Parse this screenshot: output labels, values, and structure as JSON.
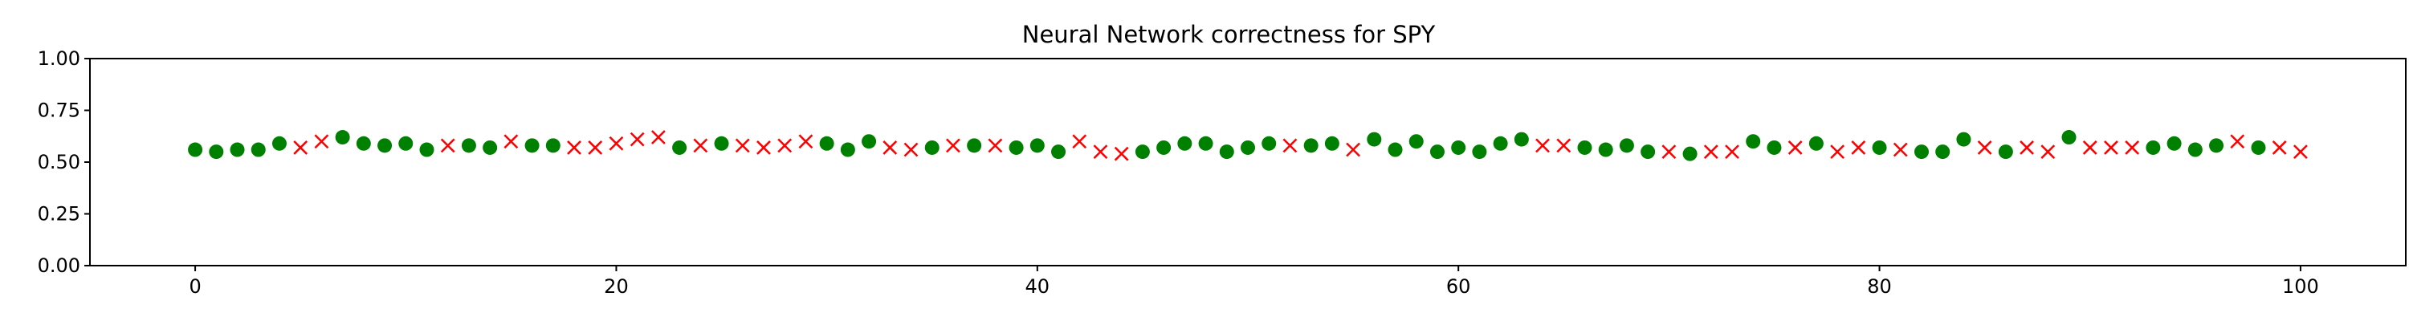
{
  "chart_data": {
    "type": "scatter",
    "title": "Neural Network correctness for SPY",
    "xlabel": "",
    "ylabel": "",
    "xlim": [
      -5,
      105
    ],
    "ylim": [
      0,
      1
    ],
    "x_ticks": [
      0,
      20,
      40,
      60,
      80,
      100
    ],
    "y_ticks": [
      0.0,
      0.25,
      0.5,
      0.75,
      1.0
    ],
    "x_tick_labels": [
      "0",
      "20",
      "40",
      "60",
      "80",
      "100"
    ],
    "y_tick_labels": [
      "0.00",
      "0.25",
      "0.50",
      "0.75",
      "1.00"
    ],
    "grid": false,
    "legend": "none",
    "colors": {
      "correct": "#008000",
      "incorrect": "#ff0000"
    },
    "markers": {
      "correct": "circle",
      "incorrect": "x"
    },
    "series": [
      {
        "x": [
          0,
          1,
          2,
          3,
          4,
          7,
          8,
          9,
          10,
          11,
          13,
          14,
          16,
          17,
          23,
          25,
          30,
          31,
          32,
          35,
          37,
          39,
          40,
          41,
          45,
          46,
          47,
          48,
          49,
          50,
          51,
          53,
          54,
          56,
          57,
          58,
          59,
          60,
          61,
          62,
          63,
          66,
          67,
          68,
          69,
          71,
          74,
          75,
          77,
          80,
          82,
          83,
          84,
          86,
          89,
          93,
          94,
          95,
          96,
          98
        ],
        "values": [
          0.56,
          0.55,
          0.56,
          0.56,
          0.59,
          0.62,
          0.59,
          0.58,
          0.59,
          0.56,
          0.58,
          0.57,
          0.58,
          0.58,
          0.57,
          0.59,
          0.59,
          0.56,
          0.6,
          0.57,
          0.58,
          0.57,
          0.58,
          0.55,
          0.55,
          0.57,
          0.59,
          0.59,
          0.55,
          0.57,
          0.59,
          0.58,
          0.59,
          0.61,
          0.56,
          0.6,
          0.55,
          0.57,
          0.55,
          0.59,
          0.61,
          0.57,
          0.56,
          0.58,
          0.55,
          0.54,
          0.6,
          0.57,
          0.59,
          0.57,
          0.55,
          0.55,
          0.61,
          0.55,
          0.62,
          0.57,
          0.59,
          0.56,
          0.58,
          0.57
        ]
      },
      {
        "x": [
          5,
          6,
          12,
          15,
          18,
          19,
          20,
          21,
          22,
          24,
          26,
          27,
          28,
          29,
          33,
          34,
          36,
          38,
          42,
          43,
          44,
          52,
          55,
          64,
          65,
          70,
          72,
          73,
          76,
          78,
          79,
          81,
          85,
          87,
          88,
          90,
          91,
          92,
          97,
          99,
          100
        ],
        "values": [
          0.57,
          0.6,
          0.58,
          0.6,
          0.57,
          0.57,
          0.59,
          0.61,
          0.62,
          0.58,
          0.58,
          0.57,
          0.58,
          0.6,
          0.57,
          0.56,
          0.58,
          0.58,
          0.6,
          0.55,
          0.54,
          0.58,
          0.56,
          0.58,
          0.58,
          0.55,
          0.55,
          0.55,
          0.57,
          0.55,
          0.57,
          0.56,
          0.57,
          0.57,
          0.55,
          0.57,
          0.57,
          0.57,
          0.6,
          0.57,
          0.55
        ]
      }
    ]
  }
}
